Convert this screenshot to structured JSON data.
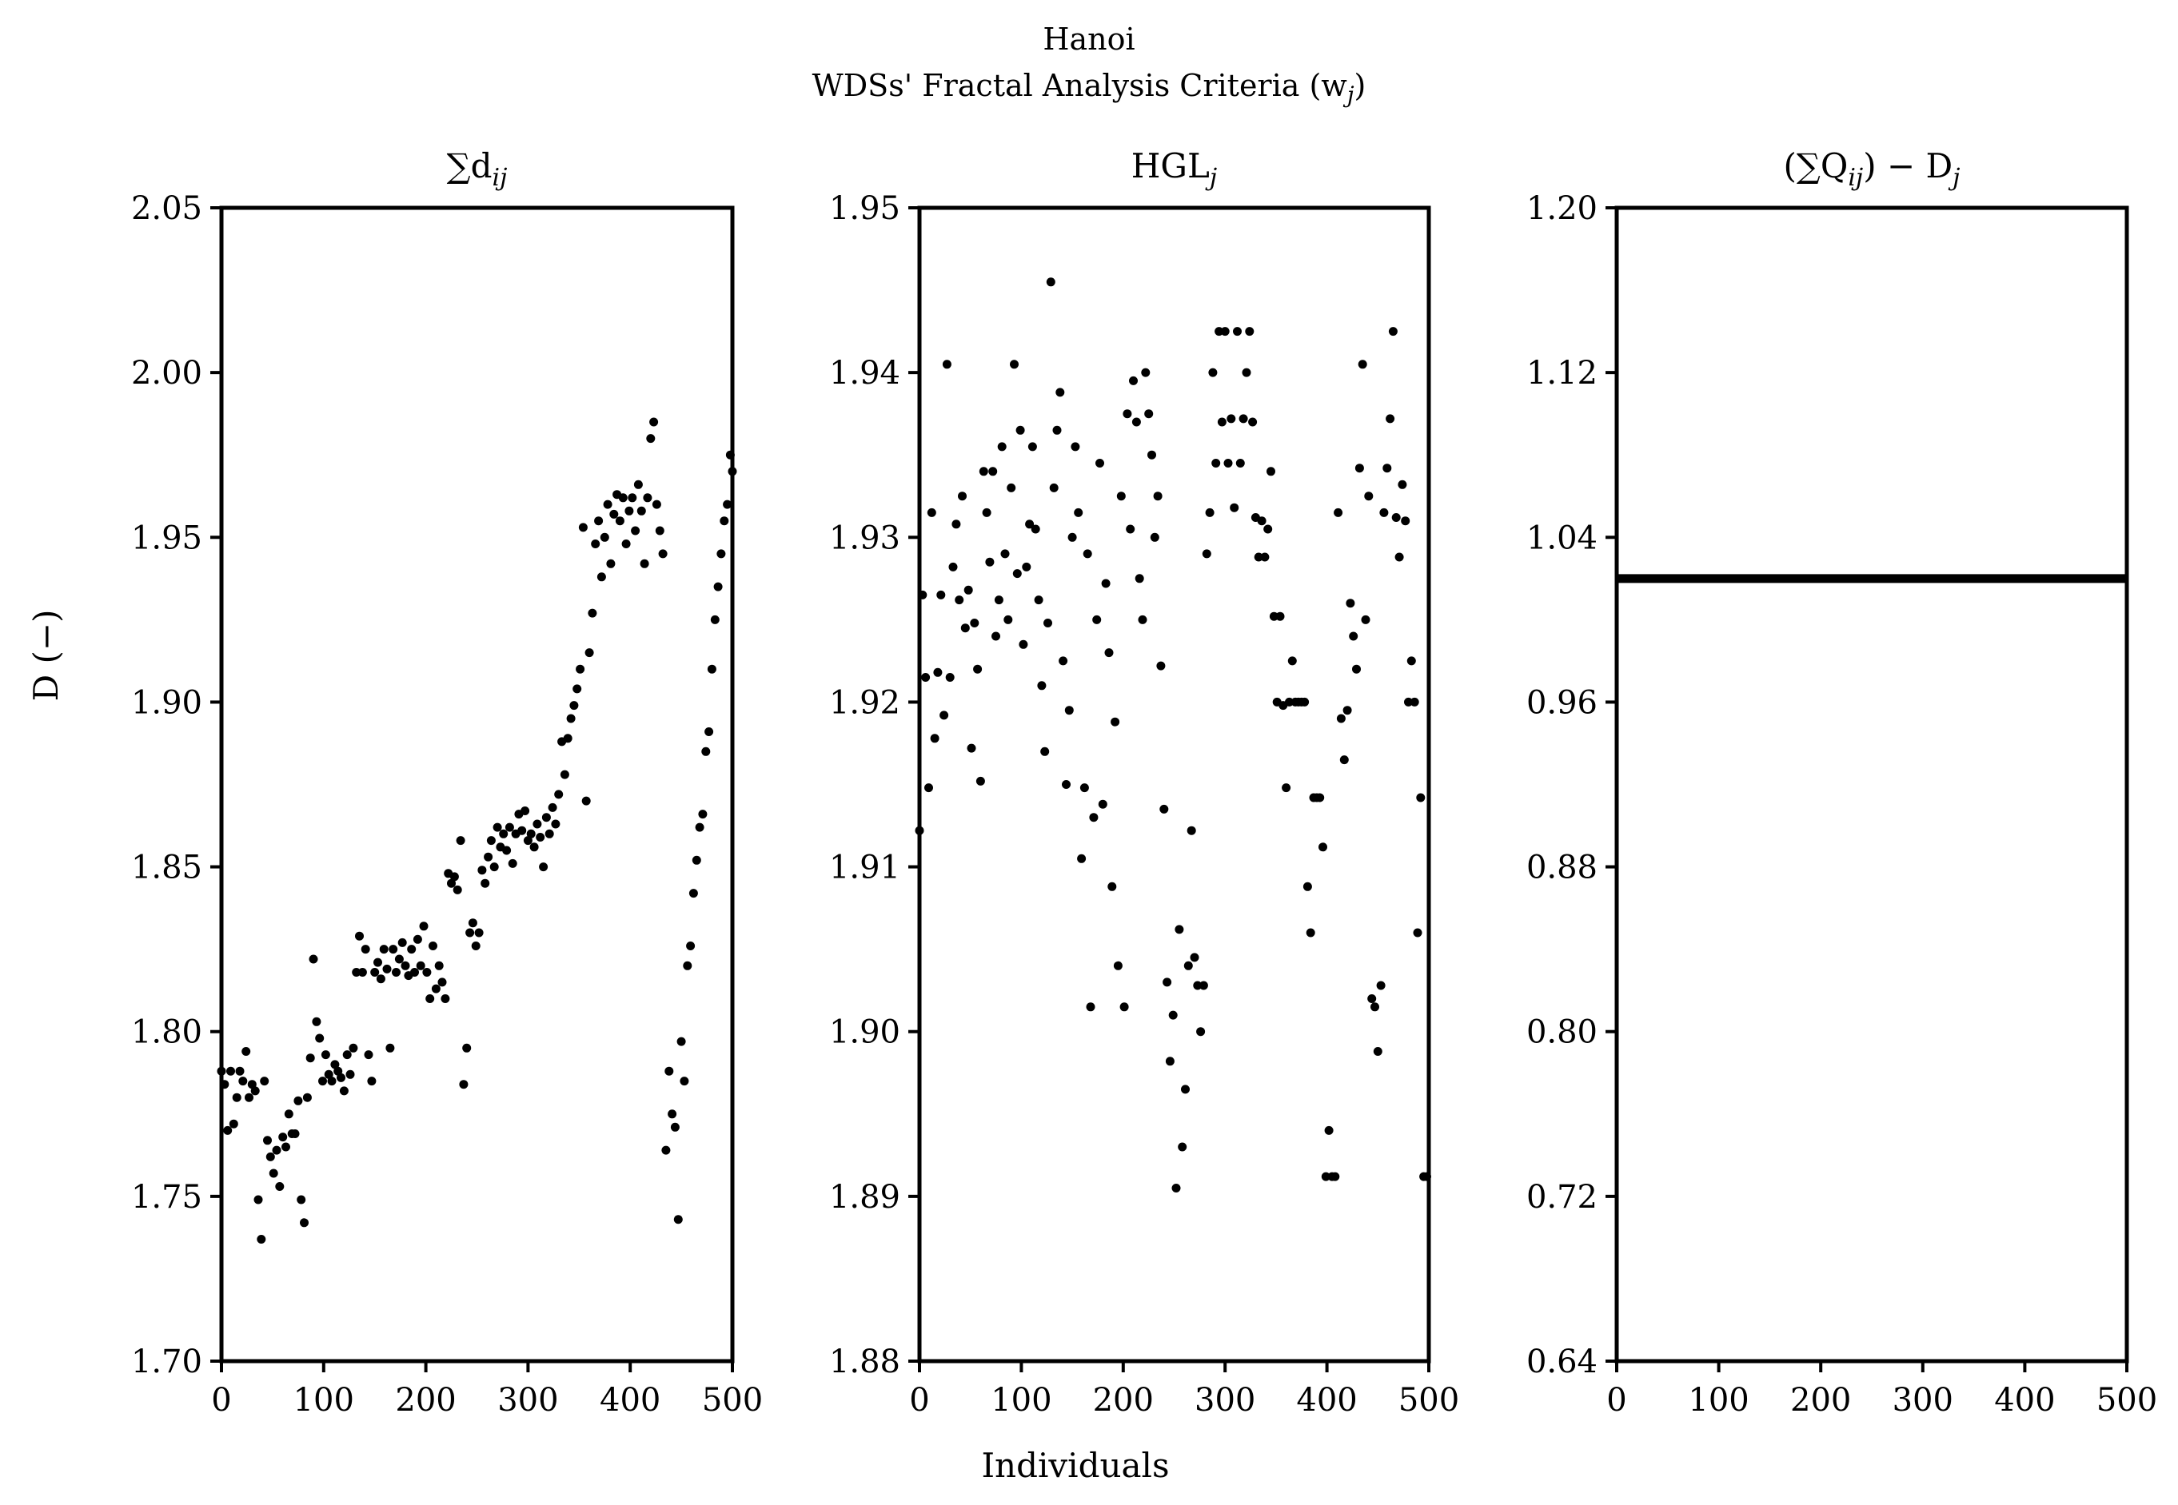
{
  "figure": {
    "title_line1": "Hanoi",
    "title_line2": "WDSs' Fractal Analysis Criteria (w",
    "title_line2_sub": "j",
    "title_line2_end": ")",
    "xlabel": "Individuals",
    "ylabel": "D (−)"
  },
  "panels": [
    {
      "title": "∑d",
      "title_sub": "ij",
      "title_tail": "",
      "ylim": [
        1.7,
        2.05
      ],
      "yticks": [
        "1.70",
        "1.75",
        "1.80",
        "1.85",
        "1.90",
        "1.95",
        "2.00",
        "2.05"
      ],
      "xlim": [
        0,
        500
      ],
      "xticks": [
        "0",
        "100",
        "200",
        "300",
        "400",
        "500"
      ]
    },
    {
      "title": "HGL",
      "title_sub": "j",
      "title_tail": "",
      "ylim": [
        1.88,
        1.95
      ],
      "yticks": [
        "1.88",
        "1.89",
        "1.90",
        "1.91",
        "1.92",
        "1.93",
        "1.94",
        "1.95"
      ],
      "xlim": [
        0,
        500
      ],
      "xticks": [
        "0",
        "100",
        "200",
        "300",
        "400",
        "500"
      ]
    },
    {
      "title": "(∑Q",
      "title_sub": "ij",
      "title_tail": ") − D",
      "title_tail_sub": "j",
      "ylim": [
        0.64,
        1.2
      ],
      "yticks": [
        "0.64",
        "0.72",
        "0.80",
        "0.88",
        "0.96",
        "1.04",
        "1.12",
        "1.20"
      ],
      "xlim": [
        0,
        500
      ],
      "xticks": [
        "0",
        "100",
        "200",
        "300",
        "400",
        "500"
      ]
    }
  ],
  "chart_data": [
    {
      "type": "scatter",
      "title": "∑dij",
      "xlabel": "Individuals",
      "ylabel": "D (−)",
      "xlim": [
        0,
        500
      ],
      "ylim": [
        1.7,
        2.05
      ],
      "grid": false,
      "points": [
        [
          0,
          1.788
        ],
        [
          3,
          1.784
        ],
        [
          6,
          1.77
        ],
        [
          9,
          1.788
        ],
        [
          12,
          1.772
        ],
        [
          15,
          1.78
        ],
        [
          18,
          1.788
        ],
        [
          21,
          1.785
        ],
        [
          24,
          1.794
        ],
        [
          27,
          1.78
        ],
        [
          30,
          1.784
        ],
        [
          33,
          1.782
        ],
        [
          36,
          1.749
        ],
        [
          39,
          1.737
        ],
        [
          42,
          1.785
        ],
        [
          45,
          1.767
        ],
        [
          48,
          1.762
        ],
        [
          51,
          1.757
        ],
        [
          54,
          1.764
        ],
        [
          57,
          1.753
        ],
        [
          60,
          1.768
        ],
        [
          63,
          1.765
        ],
        [
          66,
          1.775
        ],
        [
          69,
          1.769
        ],
        [
          72,
          1.769
        ],
        [
          75,
          1.779
        ],
        [
          78,
          1.749
        ],
        [
          81,
          1.742
        ],
        [
          84,
          1.78
        ],
        [
          87,
          1.792
        ],
        [
          90,
          1.822
        ],
        [
          93,
          1.803
        ],
        [
          96,
          1.798
        ],
        [
          99,
          1.785
        ],
        [
          102,
          1.793
        ],
        [
          105,
          1.787
        ],
        [
          108,
          1.785
        ],
        [
          111,
          1.79
        ],
        [
          114,
          1.788
        ],
        [
          117,
          1.786
        ],
        [
          120,
          1.782
        ],
        [
          123,
          1.793
        ],
        [
          126,
          1.787
        ],
        [
          129,
          1.795
        ],
        [
          132,
          1.818
        ],
        [
          135,
          1.829
        ],
        [
          138,
          1.818
        ],
        [
          141,
          1.825
        ],
        [
          144,
          1.793
        ],
        [
          147,
          1.785
        ],
        [
          150,
          1.818
        ],
        [
          153,
          1.821
        ],
        [
          156,
          1.816
        ],
        [
          159,
          1.825
        ],
        [
          162,
          1.819
        ],
        [
          165,
          1.795
        ],
        [
          168,
          1.825
        ],
        [
          171,
          1.818
        ],
        [
          174,
          1.822
        ],
        [
          177,
          1.827
        ],
        [
          180,
          1.82
        ],
        [
          183,
          1.817
        ],
        [
          186,
          1.825
        ],
        [
          189,
          1.818
        ],
        [
          192,
          1.828
        ],
        [
          195,
          1.82
        ],
        [
          198,
          1.832
        ],
        [
          201,
          1.818
        ],
        [
          204,
          1.81
        ],
        [
          207,
          1.826
        ],
        [
          210,
          1.813
        ],
        [
          213,
          1.82
        ],
        [
          216,
          1.815
        ],
        [
          219,
          1.81
        ],
        [
          222,
          1.848
        ],
        [
          225,
          1.845
        ],
        [
          228,
          1.847
        ],
        [
          231,
          1.843
        ],
        [
          234,
          1.858
        ],
        [
          237,
          1.784
        ],
        [
          240,
          1.795
        ],
        [
          243,
          1.83
        ],
        [
          246,
          1.833
        ],
        [
          249,
          1.826
        ],
        [
          252,
          1.83
        ],
        [
          255,
          1.849
        ],
        [
          258,
          1.845
        ],
        [
          261,
          1.853
        ],
        [
          264,
          1.858
        ],
        [
          267,
          1.85
        ],
        [
          270,
          1.862
        ],
        [
          273,
          1.856
        ],
        [
          276,
          1.86
        ],
        [
          279,
          1.855
        ],
        [
          282,
          1.862
        ],
        [
          285,
          1.851
        ],
        [
          288,
          1.86
        ],
        [
          291,
          1.866
        ],
        [
          294,
          1.861
        ],
        [
          297,
          1.867
        ],
        [
          300,
          1.858
        ],
        [
          303,
          1.86
        ],
        [
          306,
          1.856
        ],
        [
          309,
          1.863
        ],
        [
          312,
          1.859
        ],
        [
          315,
          1.85
        ],
        [
          318,
          1.865
        ],
        [
          321,
          1.86
        ],
        [
          324,
          1.868
        ],
        [
          327,
          1.863
        ],
        [
          330,
          1.872
        ],
        [
          333,
          1.888
        ],
        [
          336,
          1.878
        ],
        [
          339,
          1.889
        ],
        [
          342,
          1.895
        ],
        [
          345,
          1.899
        ],
        [
          348,
          1.904
        ],
        [
          351,
          1.91
        ],
        [
          354,
          1.953
        ],
        [
          357,
          1.87
        ],
        [
          360,
          1.915
        ],
        [
          363,
          1.927
        ],
        [
          366,
          1.948
        ],
        [
          369,
          1.955
        ],
        [
          372,
          1.938
        ],
        [
          375,
          1.95
        ],
        [
          378,
          1.96
        ],
        [
          381,
          1.942
        ],
        [
          384,
          1.957
        ],
        [
          387,
          1.963
        ],
        [
          390,
          1.955
        ],
        [
          393,
          1.962
        ],
        [
          396,
          1.948
        ],
        [
          399,
          1.958
        ],
        [
          402,
          1.962
        ],
        [
          405,
          1.952
        ],
        [
          408,
          1.966
        ],
        [
          411,
          1.958
        ],
        [
          414,
          1.942
        ],
        [
          417,
          1.962
        ],
        [
          420,
          1.98
        ],
        [
          423,
          1.985
        ],
        [
          426,
          1.96
        ],
        [
          429,
          1.952
        ],
        [
          432,
          1.945
        ],
        [
          435,
          1.764
        ],
        [
          438,
          1.788
        ],
        [
          441,
          1.775
        ],
        [
          444,
          1.771
        ],
        [
          447,
          1.743
        ],
        [
          450,
          1.797
        ],
        [
          453,
          1.785
        ],
        [
          456,
          1.82
        ],
        [
          459,
          1.826
        ],
        [
          462,
          1.842
        ],
        [
          465,
          1.852
        ],
        [
          468,
          1.862
        ],
        [
          471,
          1.866
        ],
        [
          474,
          1.885
        ],
        [
          477,
          1.891
        ],
        [
          480,
          1.91
        ],
        [
          483,
          1.925
        ],
        [
          486,
          1.935
        ],
        [
          489,
          1.945
        ],
        [
          492,
          1.955
        ],
        [
          495,
          1.96
        ],
        [
          498,
          1.975
        ],
        [
          500,
          1.97
        ]
      ]
    },
    {
      "type": "scatter",
      "title": "HGLj",
      "xlabel": "Individuals",
      "ylabel": "",
      "xlim": [
        0,
        500
      ],
      "ylim": [
        1.88,
        1.95
      ],
      "grid": false,
      "points": [
        [
          0,
          1.9122
        ],
        [
          3,
          1.9265
        ],
        [
          6,
          1.9215
        ],
        [
          9,
          1.9148
        ],
        [
          12,
          1.9315
        ],
        [
          15,
          1.9178
        ],
        [
          18,
          1.9218
        ],
        [
          21,
          1.9265
        ],
        [
          24,
          1.9192
        ],
        [
          27,
          1.9405
        ],
        [
          30,
          1.9215
        ],
        [
          33,
          1.9282
        ],
        [
          36,
          1.9308
        ],
        [
          39,
          1.9262
        ],
        [
          42,
          1.9325
        ],
        [
          45,
          1.9245
        ],
        [
          48,
          1.9268
        ],
        [
          51,
          1.9172
        ],
        [
          54,
          1.9248
        ],
        [
          57,
          1.922
        ],
        [
          60,
          1.9152
        ],
        [
          63,
          1.934
        ],
        [
          66,
          1.9315
        ],
        [
          69,
          1.9285
        ],
        [
          72,
          1.934
        ],
        [
          75,
          1.924
        ],
        [
          78,
          1.9262
        ],
        [
          81,
          1.9355
        ],
        [
          84,
          1.929
        ],
        [
          87,
          1.925
        ],
        [
          90,
          1.933
        ],
        [
          93,
          1.9405
        ],
        [
          96,
          1.9278
        ],
        [
          99,
          1.9365
        ],
        [
          102,
          1.9235
        ],
        [
          105,
          1.9282
        ],
        [
          108,
          1.9308
        ],
        [
          111,
          1.9355
        ],
        [
          114,
          1.9305
        ],
        [
          117,
          1.9262
        ],
        [
          120,
          1.921
        ],
        [
          123,
          1.917
        ],
        [
          126,
          1.9248
        ],
        [
          129,
          1.9455
        ],
        [
          132,
          1.933
        ],
        [
          135,
          1.9365
        ],
        [
          138,
          1.9388
        ],
        [
          141,
          1.9225
        ],
        [
          144,
          1.915
        ],
        [
          147,
          1.9195
        ],
        [
          150,
          1.93
        ],
        [
          153,
          1.9355
        ],
        [
          156,
          1.9315
        ],
        [
          159,
          1.9105
        ],
        [
          162,
          1.9148
        ],
        [
          165,
          1.929
        ],
        [
          168,
          1.9015
        ],
        [
          171,
          1.913
        ],
        [
          174,
          1.925
        ],
        [
          177,
          1.9345
        ],
        [
          180,
          1.9138
        ],
        [
          183,
          1.9272
        ],
        [
          186,
          1.923
        ],
        [
          189,
          1.9088
        ],
        [
          192,
          1.9188
        ],
        [
          195,
          1.904
        ],
        [
          198,
          1.9325
        ],
        [
          201,
          1.9015
        ],
        [
          204,
          1.9375
        ],
        [
          207,
          1.9305
        ],
        [
          210,
          1.9395
        ],
        [
          213,
          1.937
        ],
        [
          216,
          1.9275
        ],
        [
          219,
          1.925
        ],
        [
          222,
          1.94
        ],
        [
          225,
          1.9375
        ],
        [
          228,
          1.935
        ],
        [
          231,
          1.93
        ],
        [
          234,
          1.9325
        ],
        [
          237,
          1.9222
        ],
        [
          240,
          1.9135
        ],
        [
          243,
          1.903
        ],
        [
          246,
          1.8982
        ],
        [
          249,
          1.901
        ],
        [
          252,
          1.8905
        ],
        [
          255,
          1.9062
        ],
        [
          258,
          1.893
        ],
        [
          261,
          1.8965
        ],
        [
          264,
          1.904
        ],
        [
          267,
          1.9122
        ],
        [
          270,
          1.9045
        ],
        [
          273,
          1.9028
        ],
        [
          276,
          1.9
        ],
        [
          279,
          1.9028
        ],
        [
          282,
          1.929
        ],
        [
          285,
          1.9315
        ],
        [
          288,
          1.94
        ],
        [
          291,
          1.9345
        ],
        [
          294,
          1.9425
        ],
        [
          297,
          1.937
        ],
        [
          300,
          1.9425
        ],
        [
          303,
          1.9345
        ],
        [
          306,
          1.9372
        ],
        [
          309,
          1.9318
        ],
        [
          312,
          1.9425
        ],
        [
          315,
          1.9345
        ],
        [
          318,
          1.9372
        ],
        [
          321,
          1.94
        ],
        [
          324,
          1.9425
        ],
        [
          327,
          1.937
        ],
        [
          330,
          1.9312
        ],
        [
          333,
          1.9288
        ],
        [
          336,
          1.931
        ],
        [
          339,
          1.9288
        ],
        [
          342,
          1.9305
        ],
        [
          345,
          1.934
        ],
        [
          348,
          1.9252
        ],
        [
          351,
          1.92
        ],
        [
          354,
          1.9252
        ],
        [
          357,
          1.9198
        ],
        [
          360,
          1.9148
        ],
        [
          363,
          1.92
        ],
        [
          366,
          1.9225
        ],
        [
          369,
          1.92
        ],
        [
          372,
          1.92
        ],
        [
          375,
          1.92
        ],
        [
          378,
          1.92
        ],
        [
          381,
          1.9088
        ],
        [
          384,
          1.906
        ],
        [
          387,
          1.9142
        ],
        [
          390,
          1.9142
        ],
        [
          393,
          1.9142
        ],
        [
          396,
          1.9112
        ],
        [
          399,
          1.8912
        ],
        [
          402,
          1.894
        ],
        [
          405,
          1.8912
        ],
        [
          408,
          1.8912
        ],
        [
          411,
          1.9315
        ],
        [
          414,
          1.919
        ],
        [
          417,
          1.9165
        ],
        [
          420,
          1.9195
        ],
        [
          423,
          1.926
        ],
        [
          426,
          1.924
        ],
        [
          429,
          1.922
        ],
        [
          432,
          1.9342
        ],
        [
          435,
          1.9405
        ],
        [
          438,
          1.925
        ],
        [
          441,
          1.9325
        ],
        [
          444,
          1.902
        ],
        [
          447,
          1.9015
        ],
        [
          450,
          1.8988
        ],
        [
          453,
          1.9028
        ],
        [
          456,
          1.9315
        ],
        [
          459,
          1.9342
        ],
        [
          462,
          1.9372
        ],
        [
          465,
          1.9425
        ],
        [
          468,
          1.9312
        ],
        [
          471,
          1.9288
        ],
        [
          474,
          1.9332
        ],
        [
          477,
          1.931
        ],
        [
          480,
          1.92
        ],
        [
          483,
          1.9225
        ],
        [
          486,
          1.92
        ],
        [
          489,
          1.906
        ],
        [
          492,
          1.9142
        ],
        [
          495,
          1.8912
        ],
        [
          498,
          1.8912
        ]
      ]
    },
    {
      "type": "line",
      "title": "(∑Qij) − Dj",
      "xlabel": "",
      "ylabel": "",
      "xlim": [
        0,
        500
      ],
      "ylim": [
        0.64,
        1.2
      ],
      "grid": false,
      "x": [
        0,
        500
      ],
      "y": [
        1.02,
        1.02
      ]
    }
  ]
}
